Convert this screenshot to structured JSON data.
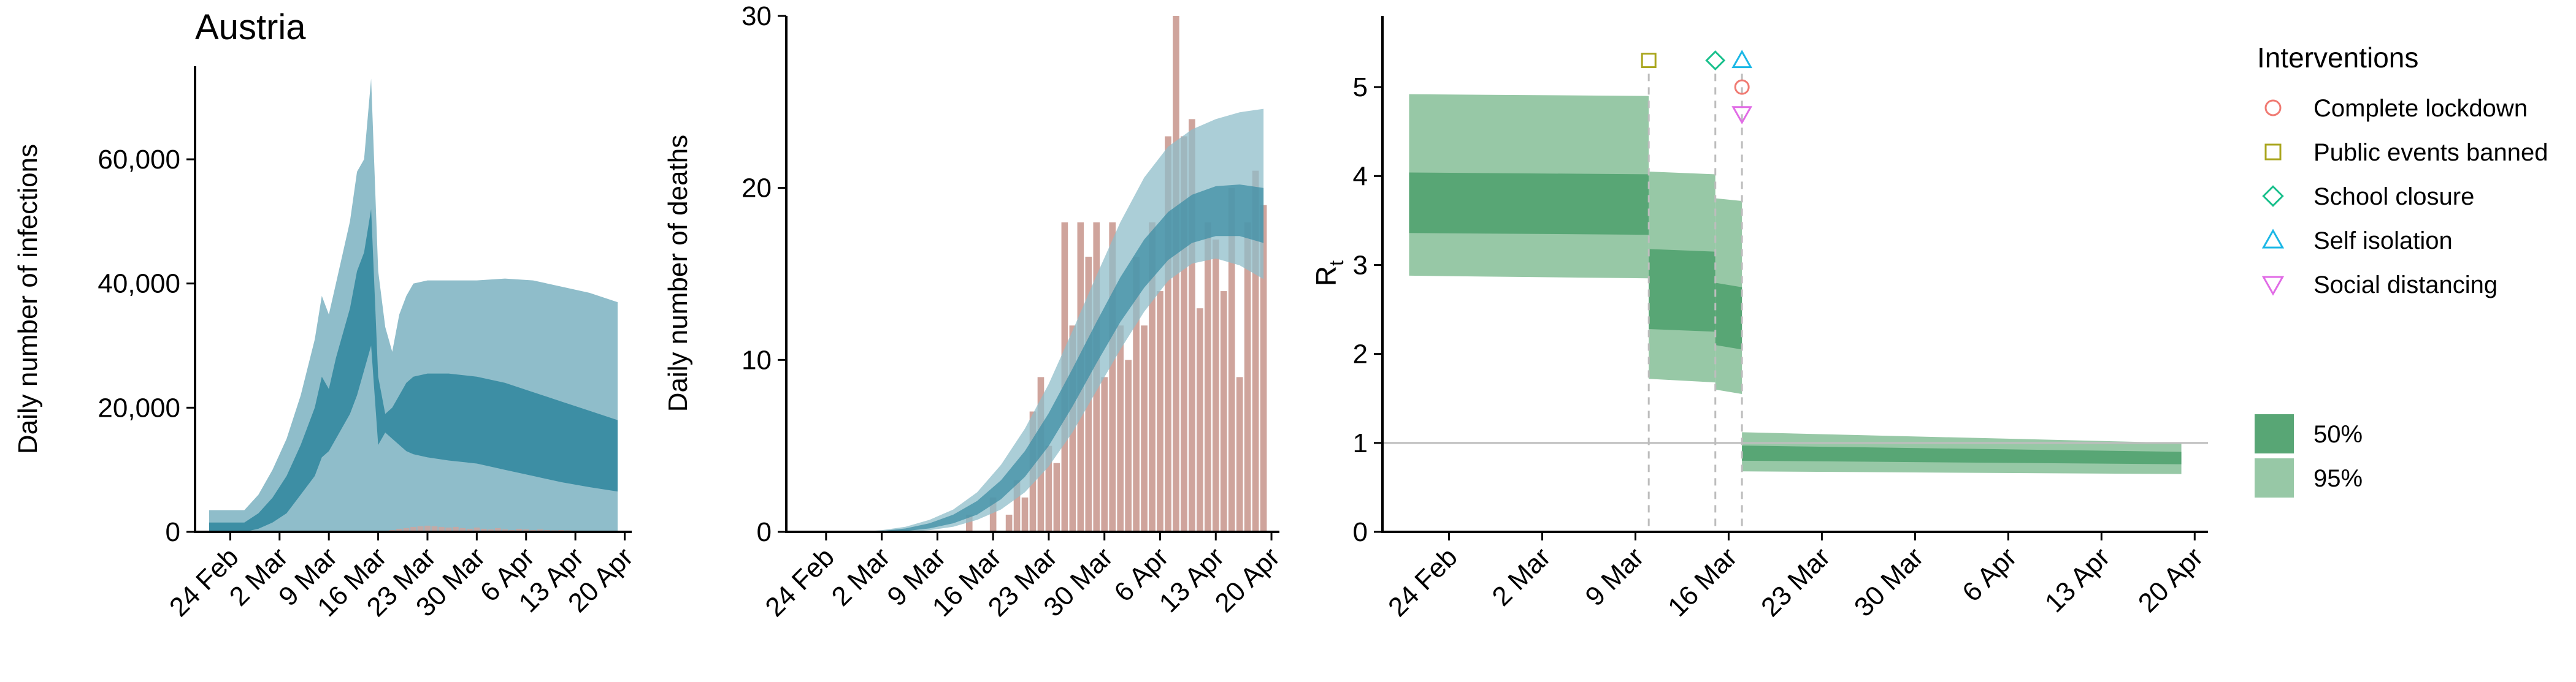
{
  "colors": {
    "infection_95": "#8fbdca",
    "infection_50": "#3d8ea4",
    "deaths_95": "#8fbdca",
    "deaths_50": "#3d8ea4",
    "deaths_bar": "#cfa49c",
    "rt_95": "#97c8a6",
    "rt_50": "#58a675",
    "lockdown": "#f07a72",
    "public_events": "#aaa61e",
    "school": "#19c08c",
    "self_isolation": "#1bb7e6",
    "social_distancing": "#e16be6",
    "ref_line": "#bdbdbd",
    "vline": "#bdbdbd"
  },
  "chart_data": [
    {
      "type": "area",
      "title": "Austria",
      "xlabel": "",
      "ylabel": "Daily number of infections",
      "x_ticks": [
        "24 Feb",
        "2 Mar",
        "9 Mar",
        "16 Mar",
        "23 Mar",
        "30 Mar",
        "6 Apr",
        "13 Apr",
        "20 Apr"
      ],
      "y_ticks": [
        "0",
        "20,000",
        "40,000",
        "60,000"
      ],
      "y_tick_values": [
        0,
        20000,
        40000,
        60000
      ],
      "ylim": [
        0,
        75000
      ],
      "xlim": [
        "2020-02-19",
        "2020-04-21"
      ],
      "grid": false,
      "bands": [
        {
          "level": "95%",
          "x": [
            "2020-02-21",
            "2020-02-26",
            "2020-02-28",
            "2020-03-01",
            "2020-03-03",
            "2020-03-05",
            "2020-03-07",
            "2020-03-08",
            "2020-03-09",
            "2020-03-10",
            "2020-03-12",
            "2020-03-13",
            "2020-03-14",
            "2020-03-15",
            "2020-03-16",
            "2020-03-17",
            "2020-03-18",
            "2020-03-19",
            "2020-03-20",
            "2020-03-21",
            "2020-03-23",
            "2020-03-26",
            "2020-03-30",
            "2020-04-03",
            "2020-04-07",
            "2020-04-11",
            "2020-04-15",
            "2020-04-19"
          ],
          "upper": [
            3500,
            3500,
            6000,
            10000,
            15000,
            22000,
            31000,
            38000,
            35000,
            40000,
            50000,
            58000,
            60000,
            73000,
            42000,
            33000,
            29000,
            35000,
            38000,
            40000,
            40500,
            40500,
            40500,
            40800,
            40500,
            39500,
            38500,
            37000
          ],
          "lower": [
            0,
            0,
            0,
            0,
            0,
            0,
            0,
            0,
            0,
            0,
            0,
            0,
            0,
            0,
            0,
            0,
            0,
            0,
            0,
            0,
            0,
            0,
            0,
            0,
            0,
            0,
            0,
            0
          ]
        },
        {
          "level": "50%",
          "x": [
            "2020-02-21",
            "2020-02-26",
            "2020-02-28",
            "2020-03-01",
            "2020-03-03",
            "2020-03-05",
            "2020-03-07",
            "2020-03-08",
            "2020-03-09",
            "2020-03-10",
            "2020-03-12",
            "2020-03-13",
            "2020-03-14",
            "2020-03-15",
            "2020-03-16",
            "2020-03-17",
            "2020-03-18",
            "2020-03-19",
            "2020-03-20",
            "2020-03-21",
            "2020-03-23",
            "2020-03-26",
            "2020-03-30",
            "2020-04-03",
            "2020-04-07",
            "2020-04-11",
            "2020-04-15",
            "2020-04-19"
          ],
          "upper": [
            1500,
            1500,
            3000,
            5500,
            9000,
            14000,
            20000,
            25000,
            23000,
            28000,
            36000,
            42000,
            45000,
            52000,
            25000,
            19000,
            20000,
            22000,
            24000,
            25000,
            25500,
            25500,
            25000,
            24000,
            22500,
            21000,
            19500,
            18000
          ],
          "lower": [
            0,
            0,
            500,
            1500,
            3000,
            6000,
            9000,
            12000,
            13000,
            15000,
            19000,
            22000,
            26000,
            30000,
            14000,
            16000,
            15000,
            14000,
            13000,
            12500,
            12000,
            11500,
            11000,
            10000,
            9000,
            8000,
            7200,
            6500
          ]
        }
      ],
      "bars": {
        "x": [
          "2020-03-18",
          "2020-03-19",
          "2020-03-20",
          "2020-03-21",
          "2020-03-22",
          "2020-03-23",
          "2020-03-24",
          "2020-03-25",
          "2020-03-26",
          "2020-03-27",
          "2020-03-28",
          "2020-03-29",
          "2020-03-30",
          "2020-03-31",
          "2020-04-01",
          "2020-04-02",
          "2020-04-03",
          "2020-04-04",
          "2020-04-05",
          "2020-04-06",
          "2020-04-07",
          "2020-04-08",
          "2020-04-09",
          "2020-04-10",
          "2020-04-11",
          "2020-04-12",
          "2020-04-13"
        ],
        "values": [
          300,
          500,
          600,
          800,
          900,
          1000,
          900,
          800,
          700,
          800,
          600,
          500,
          700,
          500,
          400,
          600,
          400,
          300,
          500,
          400,
          300,
          400,
          300,
          250,
          300,
          250,
          200
        ]
      }
    },
    {
      "type": "bar",
      "title": "",
      "xlabel": "",
      "ylabel": "Daily number of deaths",
      "x_ticks": [
        "24 Feb",
        "2 Mar",
        "9 Mar",
        "16 Mar",
        "23 Mar",
        "30 Mar",
        "6 Apr",
        "13 Apr",
        "20 Apr"
      ],
      "y_ticks": [
        "0",
        "10",
        "20",
        "30"
      ],
      "y_tick_values": [
        0,
        10,
        20,
        30
      ],
      "ylim": [
        0,
        30
      ],
      "xlim": [
        "2020-02-19",
        "2020-04-21"
      ],
      "grid": false,
      "bars": {
        "x": [
          "2020-03-12",
          "2020-03-13",
          "2020-03-14",
          "2020-03-15",
          "2020-03-16",
          "2020-03-17",
          "2020-03-18",
          "2020-03-19",
          "2020-03-20",
          "2020-03-21",
          "2020-03-22",
          "2020-03-23",
          "2020-03-24",
          "2020-03-25",
          "2020-03-26",
          "2020-03-27",
          "2020-03-28",
          "2020-03-29",
          "2020-03-30",
          "2020-03-31",
          "2020-04-01",
          "2020-04-02",
          "2020-04-03",
          "2020-04-04",
          "2020-04-05",
          "2020-04-06",
          "2020-04-07",
          "2020-04-08",
          "2020-04-09",
          "2020-04-10",
          "2020-04-11",
          "2020-04-12",
          "2020-04-13",
          "2020-04-14",
          "2020-04-15",
          "2020-04-16",
          "2020-04-17",
          "2020-04-18",
          "2020-04-19"
        ],
        "values": [
          0,
          1,
          0,
          0,
          2,
          0,
          1,
          3,
          2,
          7,
          9,
          5,
          4,
          18,
          12,
          18,
          16,
          18,
          9,
          18,
          12,
          10,
          16,
          12,
          18,
          14,
          23,
          30,
          23,
          24,
          13,
          18,
          17,
          14,
          20,
          9,
          18,
          21,
          19
        ]
      },
      "bands": [
        {
          "level": "95%",
          "x": [
            "2020-02-28",
            "2020-03-02",
            "2020-03-05",
            "2020-03-08",
            "2020-03-11",
            "2020-03-14",
            "2020-03-17",
            "2020-03-20",
            "2020-03-23",
            "2020-03-26",
            "2020-03-29",
            "2020-04-01",
            "2020-04-04",
            "2020-04-07",
            "2020-04-10",
            "2020-04-13",
            "2020-04-16",
            "2020-04-19"
          ],
          "upper": [
            0,
            0.1,
            0.3,
            0.7,
            1.3,
            2.3,
            3.9,
            6.0,
            8.6,
            11.7,
            14.9,
            18.0,
            20.6,
            22.4,
            23.4,
            24.0,
            24.4,
            24.6
          ],
          "lower": [
            0,
            0,
            0,
            0.1,
            0.3,
            0.7,
            1.3,
            2.3,
            3.8,
            5.8,
            8.2,
            10.6,
            12.8,
            14.6,
            15.6,
            15.9,
            15.5,
            14.7
          ]
        },
        {
          "level": "50%",
          "x": [
            "2020-02-28",
            "2020-03-02",
            "2020-03-05",
            "2020-03-08",
            "2020-03-11",
            "2020-03-14",
            "2020-03-17",
            "2020-03-20",
            "2020-03-23",
            "2020-03-26",
            "2020-03-29",
            "2020-04-01",
            "2020-04-04",
            "2020-04-07",
            "2020-04-10",
            "2020-04-13",
            "2020-04-16",
            "2020-04-19"
          ],
          "upper": [
            0,
            0.05,
            0.2,
            0.5,
            1.0,
            1.8,
            3.0,
            4.7,
            6.9,
            9.5,
            12.2,
            14.8,
            17.0,
            18.6,
            19.6,
            20.1,
            20.2,
            20.0
          ],
          "lower": [
            0,
            0,
            0.05,
            0.2,
            0.5,
            1.0,
            1.9,
            3.2,
            5.0,
            7.3,
            9.8,
            12.2,
            14.2,
            15.8,
            16.8,
            17.2,
            17.2,
            16.8
          ]
        }
      ]
    },
    {
      "type": "area",
      "title": "",
      "xlabel": "",
      "ylabel": "R",
      "ylabel_subscript": "t",
      "x_ticks": [
        "24 Feb",
        "2 Mar",
        "9 Mar",
        "16 Mar",
        "23 Mar",
        "30 Mar",
        "6 Apr",
        "13 Apr",
        "20 Apr"
      ],
      "y_ticks": [
        "0",
        "1",
        "2",
        "3",
        "4",
        "5"
      ],
      "y_tick_values": [
        0,
        1,
        2,
        3,
        4,
        5
      ],
      "ylim": [
        0,
        5.8
      ],
      "xlim": [
        "2020-02-19",
        "2020-04-21"
      ],
      "grid": false,
      "reference_line": 1,
      "segments": [
        {
          "start": "2020-02-21",
          "end": "2020-03-10",
          "upper95": [
            4.92,
            4.9
          ],
          "lower95": [
            2.88,
            2.85
          ],
          "upper50": [
            4.04,
            4.02
          ],
          "lower50": [
            3.36,
            3.34
          ]
        },
        {
          "start": "2020-03-10",
          "end": "2020-03-15",
          "upper95": [
            4.05,
            4.02
          ],
          "lower95": [
            1.72,
            1.68
          ],
          "upper50": [
            3.18,
            3.15
          ],
          "lower50": [
            2.28,
            2.25
          ]
        },
        {
          "start": "2020-03-15",
          "end": "2020-03-17",
          "upper95": [
            3.75,
            3.72
          ],
          "lower95": [
            1.6,
            1.55
          ],
          "upper50": [
            2.8,
            2.75
          ],
          "lower50": [
            2.1,
            2.05
          ]
        },
        {
          "start": "2020-03-17",
          "end": "2020-04-19",
          "upper95": [
            1.12,
            1.0
          ],
          "lower95": [
            0.68,
            0.65
          ],
          "upper50": [
            0.97,
            0.9
          ],
          "lower50": [
            0.8,
            0.76
          ]
        }
      ],
      "interventions": [
        {
          "name": "Public events banned",
          "date": "2020-03-10",
          "value": 5.3,
          "shape": "square"
        },
        {
          "name": "School closure",
          "date": "2020-03-15",
          "value": 5.3,
          "shape": "diamond"
        },
        {
          "name": "Self isolation",
          "date": "2020-03-17",
          "value": 5.3,
          "shape": "triangle-up"
        },
        {
          "name": "Complete lockdown",
          "date": "2020-03-17",
          "value": 5.0,
          "shape": "circle"
        },
        {
          "name": "Social distancing",
          "date": "2020-03-17",
          "value": 4.7,
          "shape": "triangle-down"
        }
      ],
      "legend": {
        "title": "Interventions",
        "placement": "right",
        "items": [
          {
            "label": "Complete lockdown",
            "shape": "circle",
            "color": "#f07a72"
          },
          {
            "label": "Public events banned",
            "shape": "square",
            "color": "#aaa61e"
          },
          {
            "label": "School closure",
            "shape": "diamond",
            "color": "#19c08c"
          },
          {
            "label": "Self isolation",
            "shape": "triangle-up",
            "color": "#1bb7e6"
          },
          {
            "label": "Social distancing",
            "shape": "triangle-down",
            "color": "#e16be6"
          }
        ],
        "band_items": [
          {
            "label": "50%",
            "color": "#58a675"
          },
          {
            "label": "95%",
            "color": "#97c8a6"
          }
        ]
      }
    }
  ]
}
